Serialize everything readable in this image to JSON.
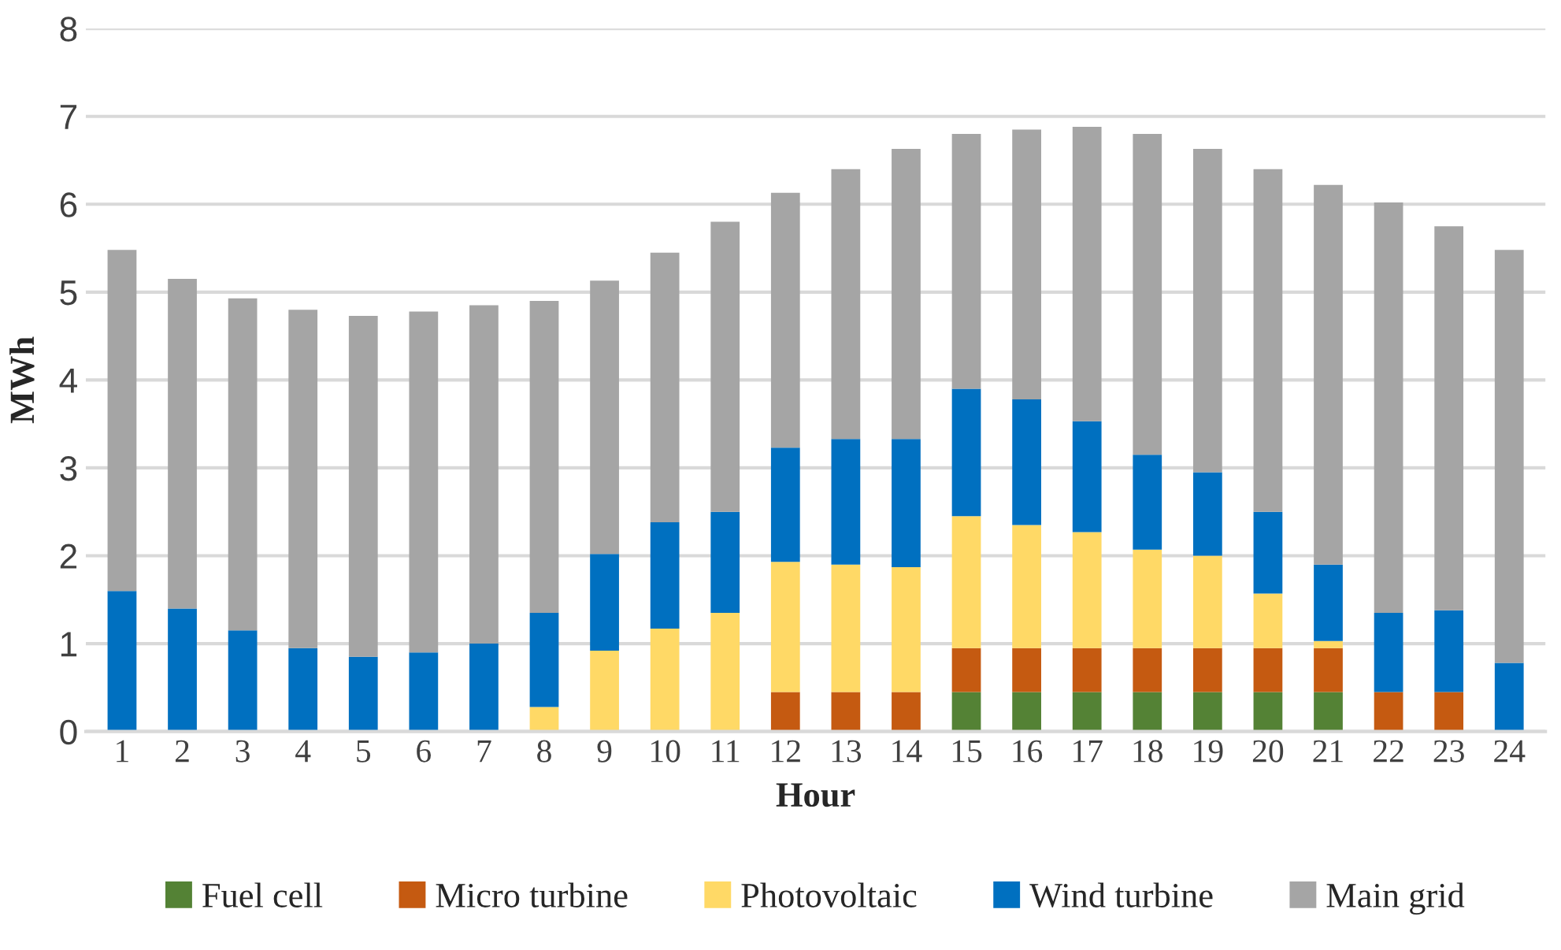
{
  "chart_data": {
    "type": "bar",
    "stacked": true,
    "xlabel": "Hour",
    "ylabel": "MWh",
    "categories": [
      "1",
      "2",
      "3",
      "4",
      "5",
      "6",
      "7",
      "8",
      "9",
      "10",
      "11",
      "12",
      "13",
      "14",
      "15",
      "16",
      "17",
      "18",
      "19",
      "20",
      "21",
      "22",
      "23",
      "24"
    ],
    "series": [
      {
        "name": "Fuel cell",
        "color": "#548235",
        "values": [
          0,
          0,
          0,
          0,
          0,
          0,
          0,
          0,
          0,
          0,
          0,
          0,
          0,
          0,
          0.45,
          0.45,
          0.45,
          0.45,
          0.45,
          0.45,
          0.45,
          0,
          0,
          0
        ]
      },
      {
        "name": "Micro turbine",
        "color": "#c55a11",
        "values": [
          0,
          0,
          0,
          0,
          0,
          0,
          0,
          0,
          0,
          0,
          0,
          0.45,
          0.45,
          0.45,
          0.5,
          0.5,
          0.5,
          0.5,
          0.5,
          0.5,
          0.5,
          0.45,
          0.45,
          0
        ]
      },
      {
        "name": "Photovoltaic",
        "color": "#ffd966",
        "values": [
          0,
          0,
          0,
          0,
          0,
          0,
          0,
          0.28,
          0.92,
          1.17,
          1.35,
          1.48,
          1.45,
          1.42,
          1.5,
          1.4,
          1.32,
          1.12,
          1.05,
          0.62,
          0.08,
          0,
          0,
          0
        ]
      },
      {
        "name": "Wind turbine",
        "color": "#0070c0",
        "values": [
          1.6,
          1.4,
          1.15,
          0.95,
          0.85,
          0.9,
          1.0,
          1.07,
          1.1,
          1.21,
          1.15,
          1.3,
          1.43,
          1.46,
          1.45,
          1.43,
          1.26,
          1.08,
          0.95,
          0.93,
          0.87,
          0.9,
          0.93,
          0.78
        ]
      },
      {
        "name": "Main grid",
        "color": "#a5a5a5",
        "values": [
          3.88,
          3.75,
          3.78,
          3.85,
          3.88,
          3.88,
          3.85,
          3.55,
          3.11,
          3.07,
          3.3,
          2.9,
          3.07,
          3.3,
          2.9,
          3.07,
          3.35,
          3.65,
          3.68,
          3.9,
          4.32,
          4.67,
          4.37,
          4.7
        ]
      }
    ],
    "ylim": [
      0,
      8
    ],
    "yticks": [
      0,
      1,
      2,
      3,
      4,
      5,
      6,
      7,
      8
    ],
    "grid": "y",
    "legend": "bottom"
  }
}
